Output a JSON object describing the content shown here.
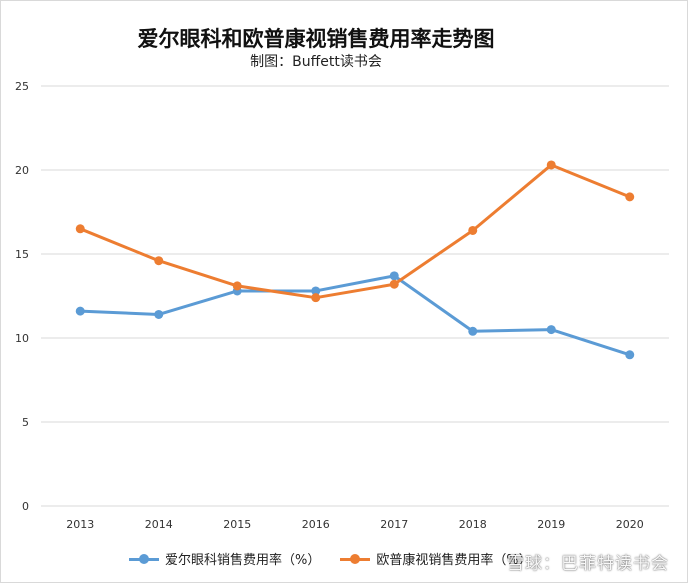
{
  "chart_data": {
    "type": "line",
    "title": "爱尔眼科和欧普康视销售费用率走势图",
    "subtitle": "制图：Buffett读书会",
    "categories": [
      "2013",
      "2014",
      "2015",
      "2016",
      "2017",
      "2018",
      "2019",
      "2020"
    ],
    "ylim": [
      0,
      25
    ],
    "yticks": [
      0,
      5,
      10,
      15,
      20,
      25
    ],
    "grid": true,
    "legend_position": "bottom",
    "series": [
      {
        "name": "爱尔眼科销售费用率（%）",
        "color": "#5b9bd5",
        "values": [
          11.6,
          11.4,
          12.8,
          12.8,
          13.7,
          10.4,
          10.5,
          9.0
        ]
      },
      {
        "name": "欧普康视销售费用率（%）",
        "color": "#ed7d31",
        "values": [
          16.5,
          14.6,
          13.1,
          12.4,
          13.2,
          16.4,
          20.3,
          18.4
        ]
      }
    ]
  },
  "watermark": "雪球：巴菲特读书会"
}
